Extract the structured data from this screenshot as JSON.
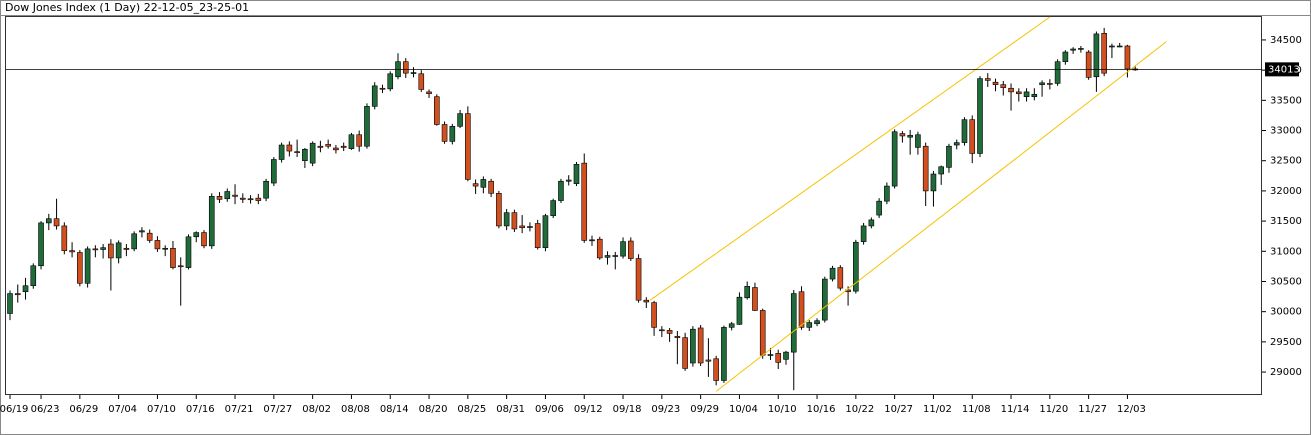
{
  "chart_data": {
    "type": "candlestick",
    "title": "Dow Jones Index (1 Day) 22-12-05_23-25-01",
    "up_color": "#1f6b3a",
    "down_color": "#d2501f",
    "ylim": [
      28620,
      34880
    ],
    "yticks": [
      29000,
      29500,
      30000,
      30500,
      31000,
      31500,
      32000,
      32500,
      33000,
      33500,
      34000,
      34500
    ],
    "last_price": 34013,
    "channel": {
      "color": "#f5c400",
      "lines": [
        [
          [
            82.5,
            30190
          ],
          [
            134,
            34880
          ]
        ],
        [
          [
            91,
            28680
          ],
          [
            149,
            34470
          ]
        ]
      ]
    },
    "categories": [
      "06/19",
      null,
      null,
      null,
      "06/23",
      null,
      null,
      null,
      null,
      "06/29",
      null,
      null,
      null,
      null,
      "07/04",
      null,
      null,
      null,
      null,
      "07/10",
      null,
      null,
      null,
      null,
      "07/16",
      null,
      null,
      null,
      null,
      "07/21",
      null,
      null,
      null,
      null,
      "07/27",
      null,
      null,
      null,
      null,
      "08/02",
      null,
      null,
      null,
      null,
      "08/08",
      null,
      null,
      null,
      null,
      "08/14",
      null,
      null,
      null,
      null,
      "08/20",
      null,
      null,
      null,
      null,
      "08/25",
      null,
      null,
      null,
      null,
      "08/31",
      null,
      null,
      null,
      null,
      "09/06",
      null,
      null,
      null,
      null,
      "09/12",
      null,
      null,
      null,
      null,
      "09/18",
      null,
      null,
      null,
      null,
      "09/23",
      null,
      null,
      null,
      null,
      "09/29",
      null,
      null,
      null,
      null,
      "10/04",
      null,
      null,
      null,
      null,
      "10/10",
      null,
      null,
      null,
      null,
      "10/16",
      null,
      null,
      null,
      null,
      "10/22",
      null,
      null,
      null,
      null,
      "10/27",
      null,
      null,
      null,
      null,
      "11/02",
      null,
      null,
      null,
      null,
      "11/08",
      null,
      null,
      null,
      null,
      "11/14",
      null,
      null,
      null,
      null,
      "11/20",
      null,
      null,
      null,
      null,
      "11/27",
      null,
      null,
      null,
      null,
      "12/03",
      null
    ],
    "open": [
      29970,
      30300,
      30330,
      30430,
      30760,
      31470,
      31540,
      31420,
      31010,
      30980,
      30470,
      31040,
      31030,
      31120,
      30890,
      31050,
      31040,
      31320,
      31300,
      31180,
      31040,
      31050,
      30760,
      30730,
      31240,
      31310,
      31090,
      31910,
      31870,
      31930,
      31880,
      31870,
      31880,
      31880,
      32130,
      32520,
      32760,
      32650,
      32500,
      32460,
      32740,
      32770,
      32710,
      32740,
      32700,
      32930,
      32740,
      33400,
      33700,
      33690,
      33890,
      34140,
      33950,
      33940,
      33640,
      33560,
      33100,
      32820,
      33070,
      33280,
      32120,
      32060,
      32160,
      31960,
      31420,
      31640,
      31420,
      31400,
      31460,
      31060,
      31590,
      31840,
      32160,
      32120,
      32460,
      31180,
      31200,
      30900,
      30920,
      30920,
      31170,
      30880,
      30190,
      30150,
      29700,
      29690,
      29590,
      29570,
      29150,
      29730,
      29200,
      29220,
      28860,
      29740,
      29790,
      30230,
      30400,
      30020,
      29280,
      29310,
      29210,
      29330,
      30330,
      29740,
      29800,
      29860,
      30540,
      30730,
      30360,
      30340,
      31160,
      31420,
      31600,
      31830,
      32080,
      32950,
      32890,
      32720,
      32740,
      32000,
      32280,
      32390,
      32760,
      32800,
      33180,
      32620,
      33860,
      33800,
      33760,
      33700,
      33640,
      33560,
      33560,
      33760,
      33780,
      33780,
      34140,
      34330,
      34350,
      34300,
      33890,
      34610,
      34390,
      34400,
      34400,
      34020
    ],
    "high": [
      30350,
      30450,
      30560,
      30800,
      31500,
      31620,
      31870,
      31480,
      31150,
      31020,
      31080,
      31100,
      31120,
      31200,
      31180,
      31120,
      31330,
      31400,
      31360,
      31250,
      31100,
      31170,
      30900,
      31280,
      31330,
      31350,
      31960,
      31980,
      32040,
      32110,
      31960,
      31930,
      31950,
      32200,
      32560,
      32800,
      32820,
      32850,
      32710,
      32820,
      32830,
      32850,
      32760,
      32800,
      32960,
      33000,
      33450,
      33800,
      33760,
      33980,
      34280,
      34200,
      34050,
      34000,
      33680,
      33600,
      33150,
      33110,
      33340,
      33400,
      32190,
      32240,
      32200,
      32000,
      31700,
      31690,
      31600,
      31480,
      31520,
      31620,
      31870,
      32200,
      32260,
      32480,
      32620,
      31260,
      31240,
      31000,
      30990,
      31230,
      31230,
      30950,
      30240,
      30180,
      29760,
      29730,
      29680,
      29650,
      29760,
      29780,
      29560,
      29270,
      29770,
      29830,
      30320,
      30500,
      30480,
      30050,
      29400,
      29370,
      29350,
      30360,
      30420,
      29860,
      29890,
      30580,
      30760,
      30770,
      30420,
      31190,
      31470,
      31560,
      31880,
      32140,
      33020,
      32990,
      33010,
      32980,
      32800,
      32330,
      32420,
      32780,
      32850,
      33220,
      33250,
      33900,
      33950,
      33860,
      33820,
      33780,
      33700,
      33700,
      33700,
      33830,
      33850,
      34180,
      34330,
      34380,
      34400,
      34330,
      34640,
      34700,
      34440,
      34450,
      34420,
      34060
    ],
    "low": [
      29860,
      30150,
      30200,
      30380,
      30700,
      31350,
      31360,
      30950,
      30900,
      30420,
      30400,
      30900,
      30880,
      30350,
      30800,
      30920,
      31000,
      31230,
      31140,
      30990,
      30920,
      30700,
      30100,
      30700,
      31150,
      31050,
      31040,
      31800,
      31820,
      31780,
      31800,
      31790,
      31780,
      31830,
      32080,
      32470,
      32570,
      32560,
      32380,
      32410,
      32640,
      32700,
      32620,
      32660,
      32680,
      32650,
      32700,
      33350,
      33620,
      33650,
      33850,
      33870,
      33880,
      33640,
      33540,
      33080,
      32780,
      32770,
      33040,
      32160,
      31950,
      31960,
      31900,
      31380,
      31350,
      31320,
      31300,
      31330,
      31030,
      31000,
      31550,
      31800,
      32090,
      32080,
      31140,
      31090,
      30860,
      30780,
      30700,
      30880,
      30840,
      30150,
      30060,
      29600,
      29580,
      29500,
      29130,
      29020,
      29090,
      29100,
      28920,
      28780,
      28820,
      29690,
      29780,
      30200,
      30010,
      29220,
      29200,
      29050,
      29120,
      28700,
      29700,
      29680,
      29760,
      29820,
      30500,
      30350,
      30100,
      30300,
      31110,
      31380,
      31550,
      31780,
      32040,
      32800,
      32600,
      32600,
      31750,
      31740,
      32100,
      32300,
      32690,
      32750,
      32460,
      32560,
      33720,
      33650,
      33580,
      33330,
      33480,
      33480,
      33500,
      33560,
      33680,
      33740,
      34090,
      34270,
      34290,
      33840,
      33640,
      33900,
      34200,
      34380,
      33880,
      33990
    ],
    "close": [
      30300,
      30280,
      30430,
      30760,
      31470,
      31540,
      31420,
      31010,
      30990,
      30470,
      31040,
      31030,
      31060,
      30890,
      31140,
      31030,
      31290,
      31340,
      31180,
      31040,
      31050,
      30730,
      30750,
      31240,
      31310,
      31090,
      31910,
      31860,
      31990,
      31910,
      31860,
      31860,
      31840,
      32160,
      32520,
      32760,
      32660,
      32640,
      32690,
      32790,
      32720,
      32740,
      32680,
      32720,
      32930,
      32740,
      33400,
      33740,
      33690,
      33940,
      34140,
      33950,
      33960,
      33680,
      33610,
      33100,
      32820,
      33070,
      33280,
      32190,
      32080,
      32190,
      31960,
      31420,
      31640,
      31370,
      31390,
      31410,
      31060,
      31590,
      31840,
      32160,
      32180,
      32440,
      31180,
      31190,
      30890,
      30930,
      30930,
      31160,
      30880,
      30190,
      30160,
      29740,
      29690,
      29640,
      29570,
      29060,
      29710,
      29150,
      29180,
      28860,
      29740,
      29800,
      30240,
      30420,
      30020,
      29280,
      29290,
      29160,
      29330,
      30300,
      29740,
      29820,
      29850,
      30540,
      30720,
      30390,
      30330,
      31150,
      31420,
      31520,
      31830,
      32080,
      32980,
      32910,
      32920,
      32930,
      32000,
      32280,
      32400,
      32740,
      32800,
      33180,
      32620,
      33860,
      33830,
      33760,
      33710,
      33640,
      33610,
      33640,
      33600,
      33790,
      33770,
      34140,
      34300,
      34350,
      34360,
      33880,
      34600,
      33950,
      34400,
      34400,
      34020,
      34010
    ]
  }
}
